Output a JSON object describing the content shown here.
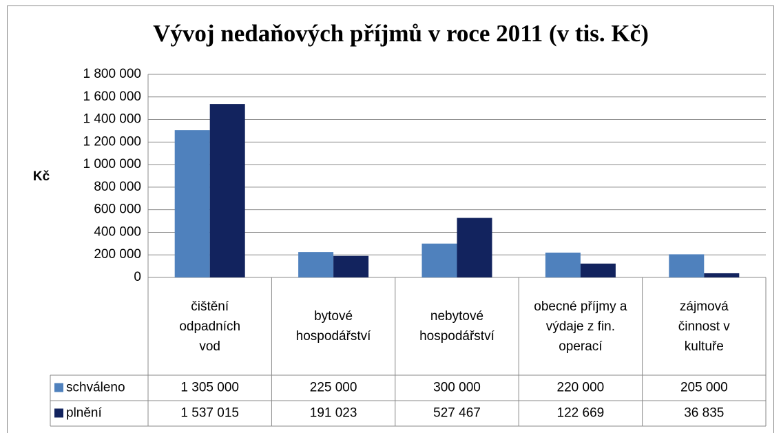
{
  "chart_data": {
    "type": "bar",
    "title": "Vývoj nedaňových příjmů v roce 2011 (v tis. Kč)",
    "y_label": "Kč",
    "categories": [
      "čištění odpadních vod",
      "bytové hospodářství",
      "nebytové hospodářství",
      "obecné příjmy a výdaje z fin. operací",
      "zájmová činnost v kultuře"
    ],
    "series": [
      {
        "name": "schváleno",
        "color": "#4f81bd",
        "values": [
          1305000,
          225000,
          300000,
          220000,
          205000
        ],
        "value_labels": [
          "1 305 000",
          "225 000",
          "300 000",
          "220 000",
          "205 000"
        ]
      },
      {
        "name": "plnění",
        "color": "#12235e",
        "values": [
          1537015,
          191023,
          527467,
          122669,
          36835
        ],
        "value_labels": [
          "1 537 015",
          "191 023",
          "527 467",
          "122 669",
          "36 835"
        ]
      }
    ],
    "ylim": [
      0,
      1800000
    ],
    "yticks": [
      0,
      {
        "value": 200000,
        "label": "200 000"
      },
      {
        "value": 400000,
        "label": "400 000"
      },
      {
        "value": 600000,
        "label": "600 000"
      },
      {
        "value": 800000,
        "label": "800 000"
      },
      {
        "value": 1000000,
        "label": "1 000 000"
      },
      {
        "value": 1200000,
        "label": "1 200 000"
      },
      {
        "value": 1400000,
        "label": "1 400 000"
      },
      {
        "value": 1600000,
        "label": "1 600 000"
      },
      {
        "value": 1800000,
        "label": "1 800 000"
      }
    ],
    "grid": true
  }
}
